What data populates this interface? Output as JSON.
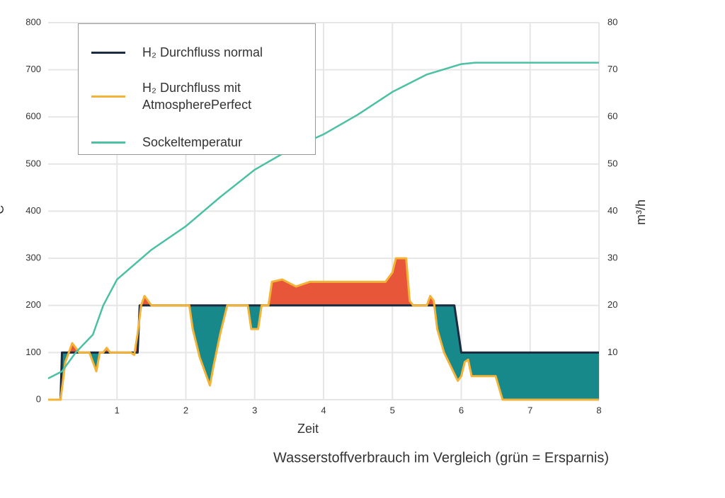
{
  "chart_data": {
    "type": "line",
    "caption": "Wasserstoffverbrauch im Vergleich (grün = Ersparnis)",
    "xlabel": "Zeit",
    "ylabel": "°C",
    "y2label": "m³/h",
    "xlim": [
      0,
      8
    ],
    "xticks": [
      1,
      2,
      3,
      4,
      5,
      6,
      7,
      8
    ],
    "ylim": [
      0,
      800
    ],
    "yticks": [
      0,
      100,
      200,
      300,
      400,
      500,
      600,
      700,
      800
    ],
    "y2lim": [
      0,
      80
    ],
    "y2ticks": [
      10,
      20,
      30,
      40,
      50,
      60,
      70,
      80
    ],
    "grid": true,
    "legend": "upper left",
    "savings_color": "#17898a",
    "excess_color": "#e8563a",
    "series": [
      {
        "name": "H₂ Durchfluss normal",
        "color": "#1b2b40",
        "axis": "y2",
        "x": [
          0,
          0.18,
          0.2,
          1.3,
          1.33,
          5.9,
          6.0,
          8
        ],
        "values": [
          0,
          0,
          10,
          10,
          20,
          20,
          10,
          10
        ]
      },
      {
        "name": "H₂ Durchfluss mit AtmospherePerfect",
        "color": "#f3b336",
        "axis": "y2",
        "x": [
          0,
          0.18,
          0.25,
          0.3,
          0.35,
          0.4,
          0.45,
          0.6,
          0.7,
          0.75,
          0.8,
          0.85,
          0.9,
          1.0,
          1.2,
          1.25,
          1.3,
          1.35,
          1.4,
          1.5,
          2.0,
          2.05,
          2.1,
          2.2,
          2.3,
          2.35,
          2.4,
          2.5,
          2.6,
          2.9,
          2.95,
          3.0,
          3.05,
          3.1,
          3.2,
          3.25,
          3.4,
          3.6,
          3.8,
          4.0,
          4.5,
          4.9,
          5.0,
          5.05,
          5.2,
          5.25,
          5.3,
          5.5,
          5.55,
          5.6,
          5.65,
          5.75,
          5.85,
          5.95,
          6.0,
          6.05,
          6.1,
          6.15,
          6.2,
          6.5,
          6.6,
          8
        ],
        "values": [
          0,
          0,
          8,
          10,
          12,
          11,
          10,
          10,
          6,
          10,
          10,
          11,
          10,
          10,
          10,
          9.5,
          14,
          20,
          22,
          20,
          20,
          20,
          15,
          9,
          5,
          3,
          7,
          14,
          20,
          20,
          15,
          15,
          15,
          20,
          20,
          25,
          25.5,
          24,
          25,
          25,
          25,
          25,
          27,
          30,
          30,
          21,
          20,
          20,
          22,
          21,
          15,
          10,
          7,
          4,
          5,
          8,
          8.5,
          5,
          5,
          5,
          0,
          0
        ]
      },
      {
        "name": "Sockeltemperatur",
        "color": "#4cc0a3",
        "axis": "y",
        "x": [
          0,
          0.2,
          0.4,
          0.65,
          0.8,
          1.0,
          1.5,
          2.0,
          2.5,
          3.0,
          3.5,
          4.0,
          4.5,
          5.0,
          5.5,
          6.0,
          6.2,
          8
        ],
        "values": [
          45,
          60,
          100,
          138,
          200,
          255,
          318,
          368,
          430,
          488,
          530,
          563,
          605,
          653,
          690,
          712,
          715,
          715
        ]
      }
    ]
  }
}
